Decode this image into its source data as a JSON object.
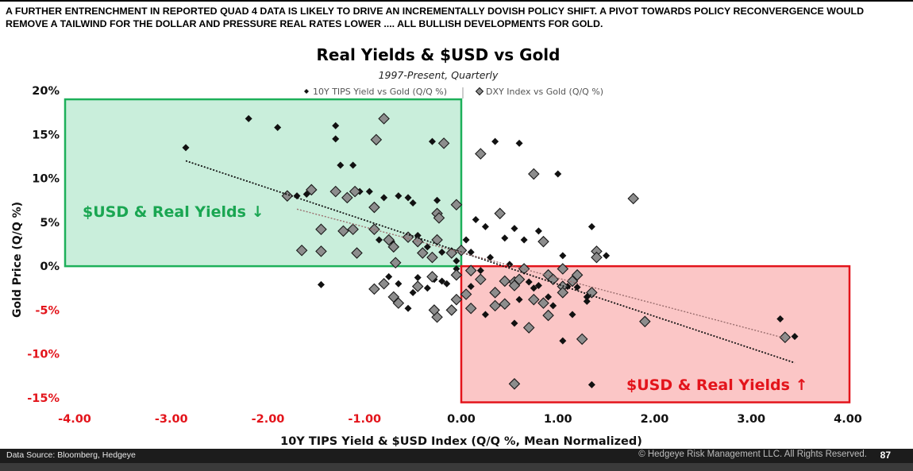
{
  "header": {
    "line1": "A FURTHER ENTRENCHMENT IN REPORTED QUAD 4 DATA IS LIKELY TO DRIVE AN INCREMENTALLY DOVISH POLICY SHIFT.   A PIVOT TOWARDS POLICY RECONVERGENCE WOULD",
    "line2": "REMOVE A TAILWIND FOR THE DOLLAR AND PRESSURE REAL RATES LOWER  .... ALL BULLISH DEVELOPMENTS FOR GOLD."
  },
  "footer": {
    "source": "Data Source: Bloomberg, Hedgeye",
    "copyright": "© Hedgeye Risk Management LLC. All Rights Reserved.",
    "page_number": "87"
  },
  "colors": {
    "green_box_fill": "#c9eedb",
    "green_box_border": "#1db05a",
    "green_text": "#1aa652",
    "red_box_fill": "#fbc6c6",
    "red_box_border": "#e3141b",
    "red_text": "#e3141b",
    "tips_marker": "#111111",
    "dxy_marker": "#8d8d8d"
  },
  "chart_data": {
    "type": "scatter",
    "title": "Real Yields & $USD vs Gold",
    "subtitle": "1997-Present, Quarterly",
    "xlabel": "10Y TIPS Yield & $USD Index (Q/Q %, Mean Normalized)",
    "ylabel": "Gold Price (Q/Q %)",
    "xlim": [
      -4,
      4
    ],
    "ylim": [
      -15,
      20
    ],
    "x_ticks": [
      "-4.00",
      "-3.00",
      "-2.00",
      "-1.00",
      "0.00",
      "1.00",
      "2.00",
      "3.00",
      "4.00"
    ],
    "y_ticks": [
      "20%",
      "15%",
      "10%",
      "5%",
      "0%",
      "-5%",
      "-10%",
      "-15%"
    ],
    "legend_position": "top-center",
    "grid": false,
    "annotations": {
      "green_region": {
        "label": "$USD & Real Yields ↓",
        "x_range": [
          -4,
          0
        ],
        "y_range": [
          0,
          19
        ]
      },
      "red_region": {
        "label": "$USD & Real Yields ↑",
        "x_range": [
          0,
          4
        ],
        "y_range": [
          -15.5,
          0
        ]
      }
    },
    "series": [
      {
        "name": "10Y TIPS Yield vs Gold (Q/Q %)",
        "marker": "small-diamond",
        "trendline": {
          "x": [
            -2.85,
            3.45
          ],
          "y": [
            12,
            -11
          ]
        },
        "points": [
          [
            -2.85,
            13.5
          ],
          [
            -2.2,
            16.8
          ],
          [
            -1.9,
            15.8
          ],
          [
            -1.7,
            8
          ],
          [
            -1.6,
            8.2
          ],
          [
            -1.45,
            -2.1
          ],
          [
            -1.3,
            16
          ],
          [
            -1.3,
            14.5
          ],
          [
            -1.25,
            11.5
          ],
          [
            -1.12,
            11.5
          ],
          [
            -1.05,
            8.5
          ],
          [
            -0.95,
            8.5
          ],
          [
            -0.9,
            6.5
          ],
          [
            -0.85,
            3
          ],
          [
            -0.8,
            7.8
          ],
          [
            -0.72,
            2.8
          ],
          [
            -0.65,
            8
          ],
          [
            -0.55,
            7.8
          ],
          [
            -0.5,
            7.2
          ],
          [
            -0.45,
            3.5
          ],
          [
            -0.35,
            2.2
          ],
          [
            -0.3,
            14.2
          ],
          [
            -0.25,
            7.5
          ],
          [
            -0.2,
            1.6
          ],
          [
            -0.05,
            0.6
          ],
          [
            -0.75,
            -1.2
          ],
          [
            -0.65,
            -2
          ],
          [
            -0.55,
            -4.8
          ],
          [
            -0.5,
            -3
          ],
          [
            -0.45,
            -1.3
          ],
          [
            -0.35,
            -2.5
          ],
          [
            -0.28,
            -1.5
          ],
          [
            -0.2,
            -1.7
          ],
          [
            -0.15,
            -2
          ],
          [
            -0.05,
            -0.3
          ],
          [
            0.05,
            3
          ],
          [
            0.1,
            1.6
          ],
          [
            0.15,
            5.3
          ],
          [
            0.2,
            -0.5
          ],
          [
            0.25,
            4.5
          ],
          [
            0.3,
            1
          ],
          [
            0.35,
            14.2
          ],
          [
            0.45,
            3.2
          ],
          [
            0.5,
            0.2
          ],
          [
            0.55,
            4.3
          ],
          [
            0.6,
            14
          ],
          [
            0.65,
            3
          ],
          [
            0.75,
            -2.5
          ],
          [
            0.8,
            4
          ],
          [
            0.9,
            -3.5
          ],
          [
            1.0,
            10.5
          ],
          [
            1.05,
            1.2
          ],
          [
            1.1,
            -2.3
          ],
          [
            1.2,
            -2.4
          ],
          [
            1.3,
            -4
          ],
          [
            1.35,
            4.5
          ],
          [
            1.5,
            1.2
          ],
          [
            0.1,
            -2.3
          ],
          [
            0.25,
            -5.5
          ],
          [
            0.55,
            -6.5
          ],
          [
            0.6,
            -3.8
          ],
          [
            0.7,
            -1.8
          ],
          [
            0.8,
            -2.2
          ],
          [
            0.95,
            -4.5
          ],
          [
            1.05,
            -8.5
          ],
          [
            1.15,
            -5.5
          ],
          [
            1.3,
            -3.5
          ],
          [
            1.35,
            -13.5
          ],
          [
            3.3,
            -6
          ],
          [
            3.45,
            -8
          ]
        ]
      },
      {
        "name": "DXY Index vs Gold (Q/Q %)",
        "marker": "large-diamond",
        "trendline": {
          "x": [
            -1.7,
            3.35
          ],
          "y": [
            6.5,
            -8.2
          ]
        },
        "points": [
          [
            -1.8,
            8
          ],
          [
            -1.55,
            8.7
          ],
          [
            -1.45,
            4.2
          ],
          [
            -1.45,
            1.7
          ],
          [
            -1.65,
            1.8
          ],
          [
            -1.3,
            8.5
          ],
          [
            -1.22,
            4
          ],
          [
            -1.12,
            4.2
          ],
          [
            -1.18,
            7.8
          ],
          [
            -1.1,
            8.5
          ],
          [
            -1.08,
            1.5
          ],
          [
            -0.9,
            6.7
          ],
          [
            -0.9,
            4.2
          ],
          [
            -0.8,
            16.8
          ],
          [
            -0.88,
            14.4
          ],
          [
            -0.75,
            3
          ],
          [
            -0.7,
            2.2
          ],
          [
            -0.68,
            0.4
          ],
          [
            -0.55,
            3.3
          ],
          [
            -0.45,
            2.8
          ],
          [
            -0.4,
            1.5
          ],
          [
            -0.3,
            1
          ],
          [
            -0.25,
            3
          ],
          [
            -0.25,
            6
          ],
          [
            -0.23,
            5.5
          ],
          [
            -0.18,
            14
          ],
          [
            -0.1,
            1.5
          ],
          [
            -0.05,
            7
          ],
          [
            0.0,
            1.8
          ],
          [
            -0.8,
            -2
          ],
          [
            -0.7,
            -3.5
          ],
          [
            -0.65,
            -4.2
          ],
          [
            -0.45,
            -2.3
          ],
          [
            -0.3,
            -1.2
          ],
          [
            -0.25,
            -5.8
          ],
          [
            -0.1,
            -5
          ],
          [
            -0.05,
            -3.8
          ],
          [
            -0.28,
            -5
          ],
          [
            -0.9,
            -2.6
          ],
          [
            0.2,
            -1.5
          ],
          [
            0.1,
            -0.5
          ],
          [
            0.2,
            12.8
          ],
          [
            0.4,
            6
          ],
          [
            0.35,
            -3
          ],
          [
            0.45,
            -1.7
          ],
          [
            0.55,
            -1.8
          ],
          [
            0.65,
            -0.3
          ],
          [
            0.75,
            10.5
          ],
          [
            0.85,
            2.8
          ],
          [
            0.9,
            -1
          ],
          [
            0.95,
            -1.5
          ],
          [
            1.05,
            -0.3
          ],
          [
            1.05,
            -2.3
          ],
          [
            1.15,
            -1.7
          ],
          [
            1.2,
            -1
          ],
          [
            1.25,
            -8.3
          ],
          [
            1.35,
            -3
          ],
          [
            1.4,
            1.7
          ],
          [
            1.4,
            1
          ],
          [
            1.78,
            7.7
          ],
          [
            1.9,
            -6.3
          ],
          [
            3.35,
            -8.1
          ],
          [
            0.1,
            -4.8
          ],
          [
            0.35,
            -4.5
          ],
          [
            0.45,
            -4.3
          ],
          [
            0.55,
            -2.2
          ],
          [
            0.7,
            -7
          ],
          [
            0.75,
            -3.8
          ],
          [
            0.85,
            -4.2
          ],
          [
            0.9,
            -5.6
          ],
          [
            0.55,
            -13.4
          ],
          [
            0.05,
            -3.2
          ],
          [
            -0.05,
            -1
          ],
          [
            0.6,
            -1.5
          ],
          [
            1.05,
            -3
          ]
        ]
      }
    ]
  }
}
